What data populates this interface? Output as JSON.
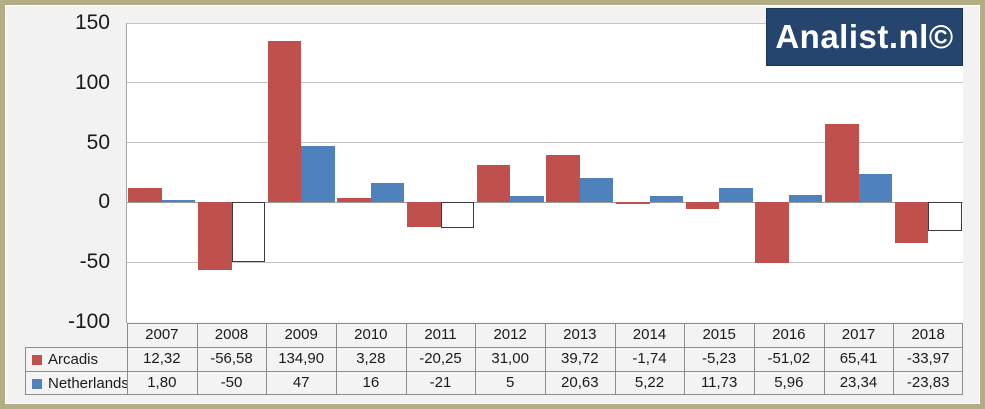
{
  "logo": {
    "text": "Analist.nl©",
    "bg": "#25456e",
    "fg": "#ffffff"
  },
  "colors": {
    "page_bg": "#f2f2f2",
    "frame_border": "#b2ad84",
    "plot_bg": "#ffffff",
    "gridline": "#c3c3c3",
    "zero_line": "#9a9a9a",
    "axis_line": "#a6a6a6",
    "table_border": "#8c8c8c",
    "cell_bg": "#f3f3f3",
    "text": "#1a1a1a",
    "arcadis": "#c0504d",
    "netherlands": "#4f81bd",
    "netherlands_negative_fill": "#ffffff",
    "netherlands_negative_border": "#3a3a3a"
  },
  "chart_data": {
    "type": "bar",
    "title": "",
    "xlabel": "",
    "ylabel": "",
    "categories": [
      "2007",
      "2008",
      "2009",
      "2010",
      "2011",
      "2012",
      "2013",
      "2014",
      "2015",
      "2016",
      "2017",
      "2018"
    ],
    "series": [
      {
        "name": "Arcadis",
        "color": "#c0504d",
        "values": [
          12.32,
          -56.58,
          134.9,
          3.28,
          -20.25,
          31.0,
          39.72,
          -1.74,
          -5.23,
          -51.02,
          65.41,
          -33.97
        ],
        "labels": [
          "12,32",
          "-56,58",
          "134,90",
          "3,28",
          "-20,25",
          "31,00",
          "39,72",
          "-1,74",
          "-5,23",
          "-51,02",
          "65,41",
          "-33,97"
        ]
      },
      {
        "name": "Netherlands",
        "color": "#4f81bd",
        "values": [
          1.8,
          -50,
          47,
          16,
          -21,
          5,
          20.63,
          5.22,
          11.73,
          5.96,
          23.34,
          -23.83
        ],
        "labels": [
          "1,80",
          "-50",
          "47",
          "16",
          "-21",
          "5",
          "20,63",
          "5,22",
          "11,73",
          "5,96",
          "23,34",
          "-23,83"
        ],
        "negative_style": "white-outline"
      }
    ],
    "ylim": [
      -100,
      150
    ],
    "yticks": [
      150,
      100,
      50,
      0,
      -50,
      -100
    ],
    "ytick_labels": [
      "150",
      "100",
      "50",
      "0",
      "-50",
      "-100"
    ],
    "grid": true,
    "legend_position": "table-left"
  }
}
